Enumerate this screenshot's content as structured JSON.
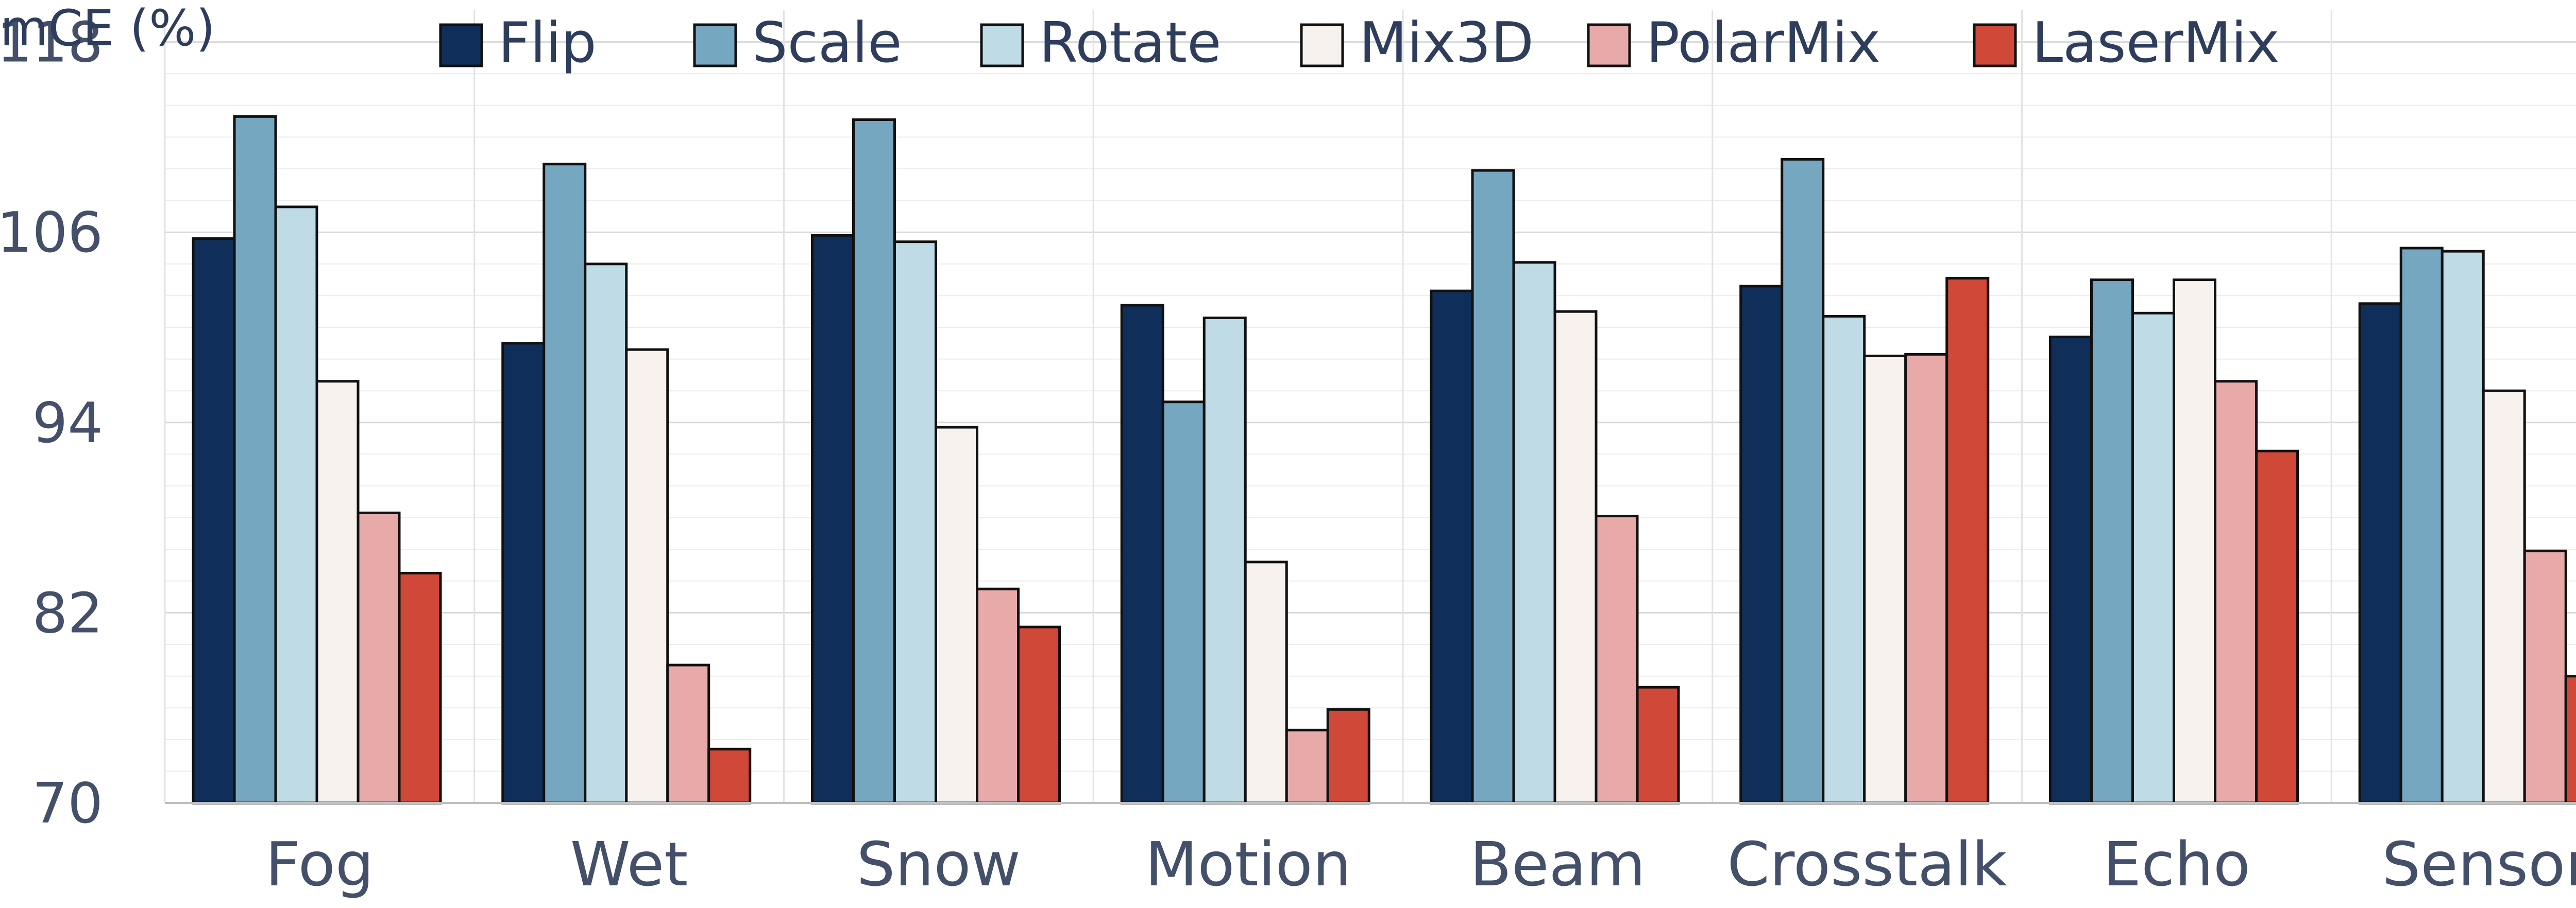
{
  "chart_data": {
    "type": "bar",
    "title": "",
    "xlabel": "",
    "ylabel": "mCE (%)",
    "ylim": [
      70,
      120
    ],
    "yticks": [
      70,
      82,
      94,
      106,
      118
    ],
    "grid": true,
    "legend_position": "top",
    "categories": [
      "Fog",
      "Wet",
      "Snow",
      "Motion",
      "Beam",
      "Crosstalk",
      "Echo",
      "Sensor"
    ],
    "series": [
      {
        "name": "Flip",
        "color": "#0f2e5a",
        "values": [
          105.6,
          99.0,
          105.8,
          101.4,
          102.3,
          102.6,
          99.4,
          101.5
        ]
      },
      {
        "name": "Scale",
        "color": "#76a7c1",
        "values": [
          113.3,
          110.3,
          113.1,
          95.3,
          109.9,
          110.6,
          103.0,
          105.0
        ]
      },
      {
        "name": "Rotate",
        "color": "#bfdbe6",
        "values": [
          107.6,
          104.0,
          105.4,
          100.6,
          104.1,
          100.7,
          100.9,
          104.8
        ]
      },
      {
        "name": "Mix3D",
        "color": "#f7f2ee",
        "values": [
          96.6,
          98.6,
          93.7,
          85.2,
          101.0,
          98.2,
          103.0,
          96.0
        ]
      },
      {
        "name": "PolarMix",
        "color": "#e8a9a9",
        "values": [
          88.3,
          78.7,
          83.5,
          74.6,
          88.1,
          98.3,
          96.6,
          85.9
        ]
      },
      {
        "name": "LaserMix",
        "color": "#d04838",
        "values": [
          84.5,
          73.4,
          81.1,
          75.9,
          77.3,
          103.1,
          92.2,
          78.0
        ]
      }
    ]
  }
}
